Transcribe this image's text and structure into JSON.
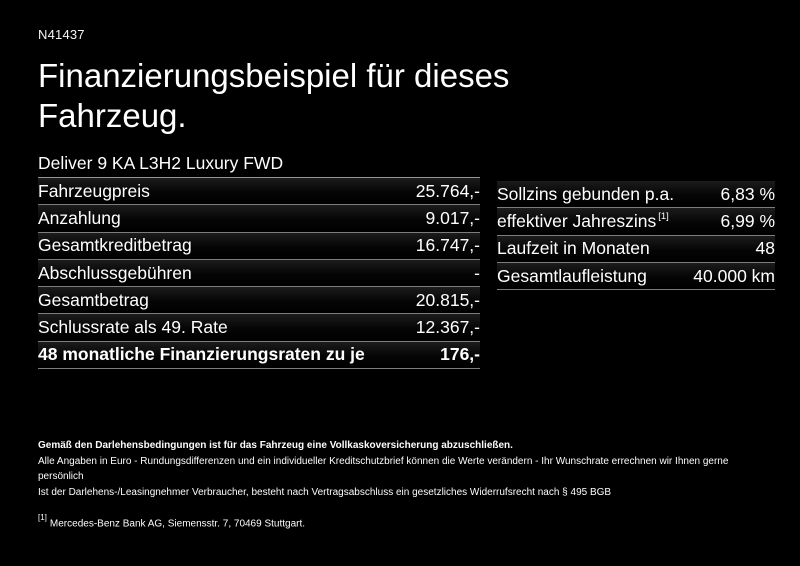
{
  "page": {
    "ref_number": "N41437",
    "title": "Finanzierungsbeispiel für dieses Fahrzeug.",
    "vehicle_model": "Deliver 9 KA L3H2 Luxury FWD"
  },
  "financing_table": {
    "rows": [
      {
        "label": "Fahrzeugpreis",
        "value": "25.764,-"
      },
      {
        "label": "Anzahlung",
        "value": "9.017,-"
      },
      {
        "label": "Gesamtkreditbetrag",
        "value": "16.747,-"
      },
      {
        "label": "Abschlussgebühren",
        "value": "-"
      },
      {
        "label": "Gesamtbetrag",
        "value": "20.815,-"
      },
      {
        "label": "Schlussrate als 49. Rate",
        "value": "12.367,-"
      },
      {
        "label": "48 monatliche Finanzierungsraten zu je",
        "value": "176,-",
        "emphasis": "bold"
      }
    ]
  },
  "conditions_table": {
    "rows": [
      {
        "label": "Sollzins gebunden p.a.",
        "value": "6,83 %"
      },
      {
        "label": "effektiver Jahreszins",
        "footnote_marker": "[1]",
        "value": "6,99 %"
      },
      {
        "label": "Laufzeit in Monaten",
        "value": "48"
      },
      {
        "label": "Gesamtlaufleistung",
        "value": "40.000 km"
      }
    ]
  },
  "disclaimers": {
    "insurance_note": "Gemäß den Darlehensbedingungen ist für das Fahrzeug eine Vollkaskoversicherung abzuschließen.",
    "rounding_note": "Alle Angaben in Euro - Rundungsdifferenzen und ein individueller Kreditschutzbrief können die Werte verändern - Ihr Wunschrate errechnen wir Ihnen gerne persönlich",
    "withdrawal_note": "Ist der Darlehens-/Leasingnehmer Verbraucher, besteht nach Vertragsabschluss ein gesetzliches Widerrufsrecht nach § 495 BGB",
    "footnote_marker": "[1]",
    "footnote_text": "Mercedes-Benz Bank AG, Siemensstr. 7, 70469 Stuttgart."
  },
  "colors": {
    "background": "#000000",
    "text": "#ffffff",
    "separator": "#7d7d7d"
  }
}
